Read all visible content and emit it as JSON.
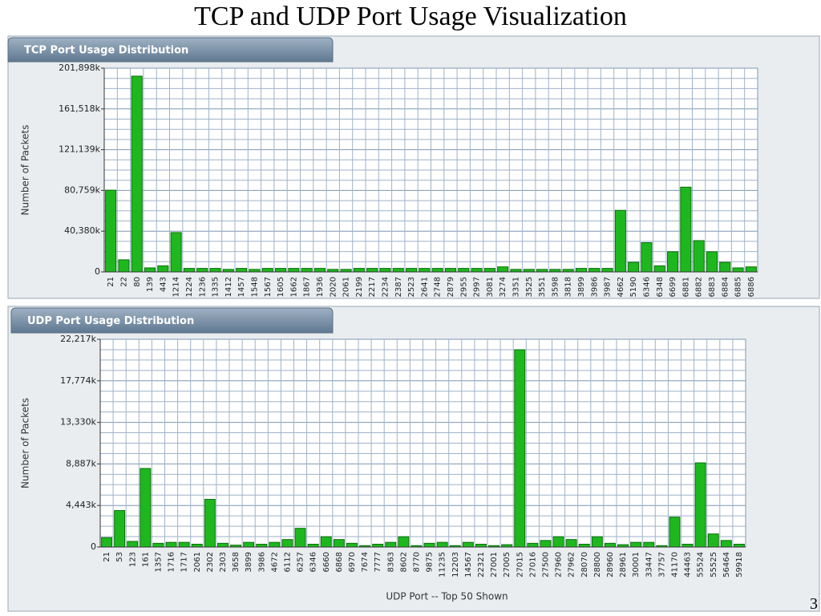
{
  "title": "TCP and UDP Port Usage Visualization",
  "page_number": "3",
  "chart_data": [
    {
      "type": "bar",
      "title": "TCP Port Usage Distribution",
      "ylabel": "Number of Packets",
      "color": "#1eb81e",
      "grid": true,
      "categories": [
        "21",
        "22",
        "80",
        "139",
        "443",
        "1214",
        "1224",
        "1236",
        "1335",
        "1412",
        "1457",
        "1548",
        "1567",
        "1605",
        "1662",
        "1867",
        "1936",
        "2020",
        "2061",
        "2199",
        "2217",
        "2234",
        "2387",
        "2523",
        "2641",
        "2748",
        "2879",
        "2955",
        "2997",
        "3081",
        "3274",
        "3351",
        "3525",
        "3551",
        "3598",
        "3818",
        "3899",
        "3986",
        "3987",
        "4662",
        "5190",
        "6346",
        "6348",
        "6699",
        "6881",
        "6882",
        "6883",
        "6884",
        "6885",
        "6886"
      ],
      "values": [
        81000,
        12000,
        194000,
        4000,
        6000,
        39000,
        3500,
        3500,
        3500,
        2500,
        3500,
        2500,
        3500,
        3500,
        3500,
        3500,
        3500,
        2500,
        2500,
        3500,
        3500,
        3500,
        3500,
        3500,
        3500,
        3500,
        3500,
        3500,
        3500,
        3500,
        5000,
        2500,
        2500,
        2500,
        2500,
        2500,
        3500,
        3500,
        3500,
        61000,
        9500,
        29000,
        6000,
        20000,
        84000,
        31000,
        20000,
        9500,
        4000,
        5000
      ],
      "ylim": [
        0,
        201898
      ],
      "yticks": [
        0,
        {
          "value": 40380,
          "label": "40,380k"
        },
        {
          "value": 80759,
          "label": "80,759k"
        },
        {
          "value": 121139,
          "label": "121,139k"
        },
        {
          "value": 161518,
          "label": "161,518k"
        },
        {
          "value": 201898,
          "label": "201,898k"
        }
      ]
    },
    {
      "type": "bar",
      "title": "UDP Port Usage Distribution",
      "ylabel": "Number of Packets",
      "xlabel": "UDP Port -- Top 50 Shown",
      "color": "#1eb81e",
      "grid": true,
      "categories": [
        "21",
        "53",
        "123",
        "161",
        "1357",
        "1716",
        "1717",
        "2061",
        "2302",
        "2303",
        "3658",
        "3899",
        "3986",
        "4672",
        "6112",
        "6257",
        "6346",
        "6660",
        "6868",
        "6970",
        "7674",
        "7777",
        "8363",
        "8602",
        "8770",
        "9875",
        "11235",
        "12203",
        "14567",
        "22321",
        "27001",
        "27005",
        "27015",
        "27016",
        "27500",
        "27960",
        "27962",
        "28070",
        "28800",
        "28960",
        "28961",
        "30001",
        "33447",
        "37757",
        "41170",
        "44463",
        "55524",
        "55525",
        "56464",
        "59918"
      ],
      "values": [
        1000,
        3900,
        600,
        8400,
        400,
        500,
        500,
        300,
        5100,
        400,
        200,
        500,
        300,
        500,
        800,
        2000,
        300,
        1100,
        800,
        400,
        150,
        300,
        500,
        1100,
        150,
        400,
        500,
        150,
        500,
        300,
        150,
        250,
        21100,
        400,
        700,
        1100,
        800,
        300,
        1100,
        400,
        250,
        500,
        500,
        150,
        3200,
        300,
        9000,
        1400,
        700,
        300
      ],
      "ylim": [
        0,
        22217
      ],
      "yticks": [
        0,
        {
          "value": 4443,
          "label": "4,443k"
        },
        {
          "value": 8887,
          "label": "8,887k"
        },
        {
          "value": 13330,
          "label": "13,330k"
        },
        {
          "value": 17774,
          "label": "17,774k"
        },
        {
          "value": 22217,
          "label": "22,217k"
        }
      ]
    }
  ]
}
